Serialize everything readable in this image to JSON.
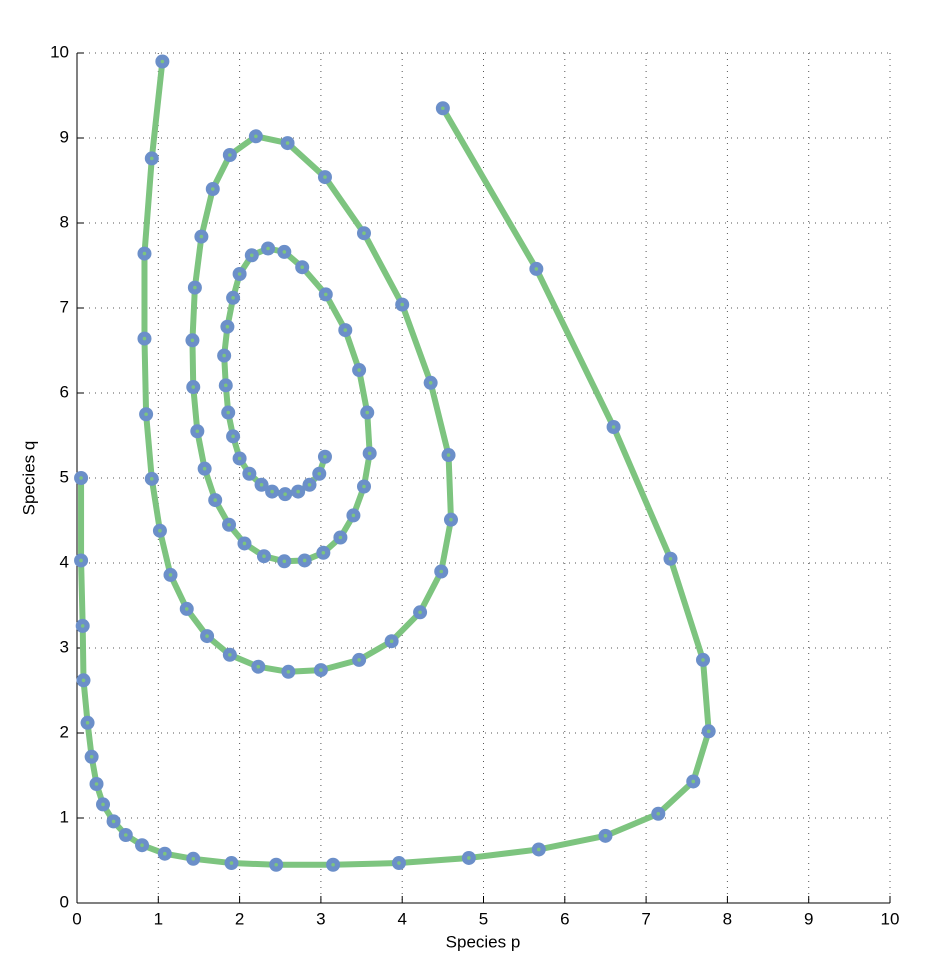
{
  "chart_data": {
    "type": "line",
    "xlabel": "Species p",
    "ylabel": "Species q",
    "xlim": [
      0,
      10
    ],
    "ylim": [
      0,
      10
    ],
    "xticks": [
      0,
      1,
      2,
      3,
      4,
      5,
      6,
      7,
      8,
      9,
      10
    ],
    "yticks": [
      0,
      1,
      2,
      3,
      4,
      5,
      6,
      7,
      8,
      9,
      10
    ],
    "grid": true,
    "x": [
      0.05,
      0.05,
      0.07,
      0.08,
      0.13,
      0.18,
      0.24,
      0.32,
      0.45,
      0.6,
      0.8,
      1.08,
      1.43,
      1.9,
      2.45,
      3.15,
      3.96,
      4.82,
      5.68,
      6.5,
      7.15,
      7.58,
      7.77,
      7.7,
      7.3,
      6.6,
      5.65,
      4.5,
      null,
      1.05,
      0.92,
      0.83,
      0.83,
      0.85,
      0.92,
      1.02,
      1.15,
      1.35,
      1.6,
      1.88,
      2.23,
      2.6,
      3.0,
      3.47,
      3.87,
      4.22,
      4.48,
      4.6,
      4.57,
      4.35,
      4.0,
      3.53,
      3.05,
      2.59,
      2.2,
      1.88,
      1.67,
      1.53,
      1.45,
      1.42,
      1.43,
      1.48,
      1.57,
      1.7,
      1.87,
      2.06,
      2.3,
      2.55,
      2.8,
      3.03,
      3.24,
      3.4,
      3.53,
      3.6,
      3.57,
      3.47,
      3.3,
      3.06,
      2.77,
      2.55,
      2.35,
      2.15,
      2.0,
      1.92,
      1.85,
      1.81,
      1.83,
      1.86,
      1.92,
      2.0,
      2.12,
      2.27,
      2.4,
      2.56,
      2.72,
      2.86,
      2.98,
      3.05
    ],
    "series": [
      {
        "color": "#7dc47f",
        "marker_color": "#6b8fc9",
        "values": [
          5.0,
          4.03,
          3.26,
          2.62,
          2.12,
          1.72,
          1.4,
          1.16,
          0.96,
          0.8,
          0.68,
          0.58,
          0.52,
          0.47,
          0.45,
          0.45,
          0.47,
          0.53,
          0.63,
          0.79,
          1.05,
          1.43,
          2.02,
          2.86,
          4.05,
          5.6,
          7.46,
          9.35,
          null,
          9.9,
          8.76,
          7.64,
          6.64,
          5.75,
          4.99,
          4.38,
          3.86,
          3.46,
          3.14,
          2.92,
          2.78,
          2.72,
          2.74,
          2.86,
          3.08,
          3.42,
          3.9,
          4.51,
          5.27,
          6.12,
          7.04,
          7.88,
          8.54,
          8.94,
          9.02,
          8.8,
          8.4,
          7.84,
          7.24,
          6.62,
          6.07,
          5.55,
          5.11,
          4.74,
          4.45,
          4.23,
          4.08,
          4.02,
          4.03,
          4.12,
          4.3,
          4.56,
          4.9,
          5.29,
          5.77,
          6.27,
          6.74,
          7.16,
          7.48,
          7.66,
          7.7,
          7.62,
          7.4,
          7.12,
          6.78,
          6.44,
          6.09,
          5.77,
          5.49,
          5.23,
          5.05,
          4.92,
          4.84,
          4.81,
          4.84,
          4.92,
          5.05,
          5.25
        ]
      }
    ]
  }
}
